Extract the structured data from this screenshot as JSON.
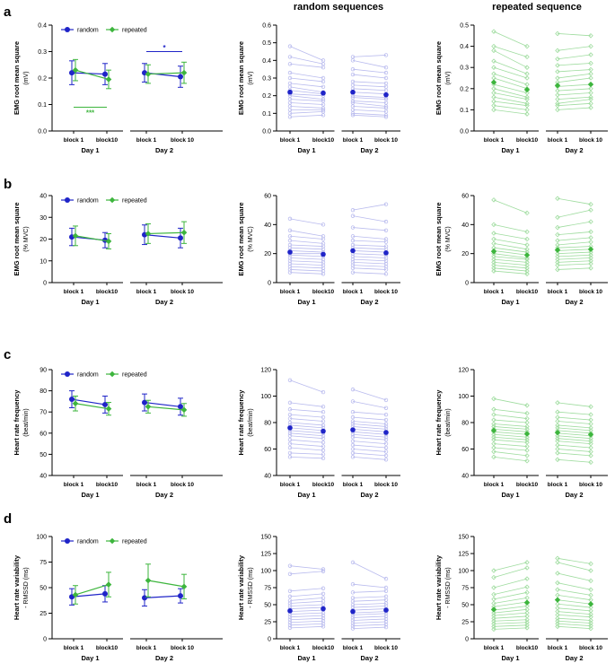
{
  "figure": {
    "col_titles": [
      "random sequences",
      "repeated sequence"
    ],
    "panel_letters": [
      "a",
      "b",
      "c",
      "d"
    ],
    "legend": {
      "random": "random",
      "repeated": "repeated"
    },
    "day_labels": [
      "Day 1",
      "Day 2"
    ],
    "colors": {
      "random": "#1f24c8",
      "repeated": "#3db53d",
      "random_light": "#b9bbee",
      "repeated_light": "#9fdc9f",
      "axis": "#000000"
    }
  },
  "chart_data": [
    {
      "type": "line",
      "row": "a",
      "ylabel": [
        "EMG root mean square",
        "(mV)"
      ],
      "categories": [
        "block 1",
        "block10",
        "block 1",
        "block 10"
      ],
      "ylim": [
        0,
        0.4
      ],
      "yticks": [
        0,
        0.1,
        0.2,
        0.3,
        0.4
      ],
      "decimals": 1,
      "series": [
        {
          "name": "random",
          "values": [
            0.22,
            0.215,
            0.22,
            0.205
          ],
          "sd": [
            0.045,
            0.04,
            0.035,
            0.04
          ]
        },
        {
          "name": "repeated",
          "values": [
            0.23,
            0.195,
            0.215,
            0.22
          ],
          "sd": [
            0.04,
            0.035,
            0.035,
            0.04
          ]
        }
      ],
      "annotations": [
        {
          "text": "***",
          "color": "#3db53d",
          "from": 0,
          "to": 1,
          "at": 0.09,
          "text_at": 0.07
        },
        {
          "text": "*",
          "color": "#1f24c8",
          "from": 2,
          "to": 3,
          "at": 0.3,
          "text_at": 0.315
        }
      ]
    },
    {
      "type": "line",
      "row": "b",
      "ylabel": [
        "EMG root mean square",
        "(% MVC)"
      ],
      "categories": [
        "block 1",
        "block10",
        "block 1",
        "block 10"
      ],
      "ylim": [
        0,
        40
      ],
      "yticks": [
        0,
        10,
        20,
        30,
        40
      ],
      "decimals": 0,
      "series": [
        {
          "name": "random",
          "values": [
            21,
            19.5,
            22,
            20.5
          ],
          "sd": [
            4,
            3.5,
            4.5,
            4.5
          ]
        },
        {
          "name": "repeated",
          "values": [
            21.5,
            19,
            22.5,
            23
          ],
          "sd": [
            4.5,
            3.5,
            4.5,
            5
          ]
        }
      ],
      "annotations": []
    },
    {
      "type": "line",
      "row": "c",
      "ylabel": [
        "Heart rate frequency",
        "(beat/min)"
      ],
      "categories": [
        "block 1",
        "block10",
        "block 1",
        "block 10"
      ],
      "ylim": [
        40,
        90
      ],
      "yticks": [
        40,
        50,
        60,
        70,
        80,
        90
      ],
      "decimals": 0,
      "series": [
        {
          "name": "random",
          "values": [
            76,
            73.5,
            74.5,
            72.5
          ],
          "sd": [
            4,
            4,
            4,
            4
          ]
        },
        {
          "name": "repeated",
          "values": [
            74,
            71.5,
            72.5,
            71
          ],
          "sd": [
            3.5,
            3,
            3,
            3
          ]
        }
      ],
      "annotations": []
    },
    {
      "type": "line",
      "row": "d",
      "ylabel": [
        "Heart rate variability",
        "- RMSSD (ms)"
      ],
      "categories": [
        "block 1",
        "block10",
        "block 1",
        "block 10"
      ],
      "ylim": [
        0,
        100
      ],
      "yticks": [
        0,
        25,
        50,
        75,
        100
      ],
      "decimals": 0,
      "series": [
        {
          "name": "random",
          "values": [
            41,
            44,
            40,
            42
          ],
          "sd": [
            8,
            8,
            8,
            7
          ]
        },
        {
          "name": "repeated",
          "values": [
            43,
            53,
            57,
            51
          ],
          "sd": [
            9,
            12,
            16,
            12
          ]
        }
      ],
      "annotations": []
    },
    {
      "type": "scatter",
      "row": "a",
      "series_name": "random",
      "ylabel": [
        "EMG root mean square",
        "(mV)"
      ],
      "categories": [
        "block 1",
        "block10",
        "block 1",
        "block 10"
      ],
      "ylim": [
        0,
        0.6
      ],
      "yticks": [
        0,
        0.1,
        0.2,
        0.3,
        0.4,
        0.5,
        0.6
      ],
      "decimals": 1,
      "means": [
        0.22,
        0.215,
        0.22,
        0.205
      ],
      "subjects": [
        [
          0.48,
          0.4,
          0.42,
          0.43
        ],
        [
          0.42,
          0.38,
          0.4,
          0.36
        ],
        [
          0.38,
          0.36,
          0.35,
          0.33
        ],
        [
          0.33,
          0.3,
          0.32,
          0.3
        ],
        [
          0.3,
          0.28,
          0.28,
          0.27
        ],
        [
          0.27,
          0.25,
          0.26,
          0.25
        ],
        [
          0.25,
          0.22,
          0.24,
          0.23
        ],
        [
          0.23,
          0.21,
          0.22,
          0.21
        ],
        [
          0.21,
          0.2,
          0.2,
          0.19
        ],
        [
          0.2,
          0.18,
          0.19,
          0.18
        ],
        [
          0.18,
          0.17,
          0.17,
          0.16
        ],
        [
          0.16,
          0.15,
          0.16,
          0.14
        ],
        [
          0.14,
          0.13,
          0.14,
          0.13
        ],
        [
          0.12,
          0.12,
          0.12,
          0.11
        ],
        [
          0.1,
          0.11,
          0.1,
          0.09
        ],
        [
          0.08,
          0.09,
          0.09,
          0.08
        ]
      ]
    },
    {
      "type": "scatter",
      "row": "a",
      "series_name": "repeated",
      "ylabel": [
        "EMG root mean square",
        "(mV)"
      ],
      "categories": [
        "block 1",
        "block10",
        "block 1",
        "block 10"
      ],
      "ylim": [
        0,
        0.5
      ],
      "yticks": [
        0,
        0.1,
        0.2,
        0.3,
        0.4,
        0.5
      ],
      "decimals": 1,
      "means": [
        0.23,
        0.195,
        0.215,
        0.22
      ],
      "subjects": [
        [
          0.47,
          0.4,
          0.46,
          0.45
        ],
        [
          0.4,
          0.35,
          0.38,
          0.4
        ],
        [
          0.38,
          0.3,
          0.34,
          0.36
        ],
        [
          0.33,
          0.27,
          0.31,
          0.32
        ],
        [
          0.3,
          0.25,
          0.28,
          0.29
        ],
        [
          0.27,
          0.22,
          0.25,
          0.27
        ],
        [
          0.25,
          0.2,
          0.23,
          0.25
        ],
        [
          0.22,
          0.18,
          0.21,
          0.22
        ],
        [
          0.2,
          0.16,
          0.19,
          0.2
        ],
        [
          0.18,
          0.15,
          0.17,
          0.18
        ],
        [
          0.16,
          0.13,
          0.15,
          0.16
        ],
        [
          0.14,
          0.12,
          0.13,
          0.15
        ],
        [
          0.12,
          0.1,
          0.12,
          0.13
        ],
        [
          0.1,
          0.08,
          0.1,
          0.11
        ]
      ]
    },
    {
      "type": "scatter",
      "row": "b",
      "series_name": "random",
      "ylabel": [
        "EMG root mean square",
        "(% MVC)"
      ],
      "categories": [
        "block 1",
        "block10",
        "block 1",
        "block 10"
      ],
      "ylim": [
        0,
        60
      ],
      "yticks": [
        0,
        20,
        40,
        60
      ],
      "decimals": 0,
      "means": [
        21,
        19.5,
        22,
        20.5
      ],
      "subjects": [
        [
          44,
          40,
          50,
          54
        ],
        [
          36,
          32,
          46,
          42
        ],
        [
          32,
          30,
          38,
          36
        ],
        [
          29,
          27,
          32,
          30
        ],
        [
          26,
          25,
          29,
          28
        ],
        [
          24,
          23,
          26,
          25
        ],
        [
          22,
          21,
          24,
          23
        ],
        [
          20,
          20,
          22,
          21
        ],
        [
          19,
          18,
          20,
          19
        ],
        [
          17,
          16,
          18,
          17
        ],
        [
          15,
          14,
          16,
          15
        ],
        [
          13,
          12,
          14,
          13
        ],
        [
          11,
          10,
          12,
          11
        ],
        [
          9,
          8,
          10,
          9
        ],
        [
          7,
          6,
          7,
          6
        ]
      ]
    },
    {
      "type": "scatter",
      "row": "b",
      "series_name": "repeated",
      "ylabel": [
        "EMG root mean square",
        "(% MVC)"
      ],
      "categories": [
        "block 1",
        "block10",
        "block 1",
        "block 10"
      ],
      "ylim": [
        0,
        60
      ],
      "yticks": [
        0,
        20,
        40,
        60
      ],
      "decimals": 0,
      "means": [
        21.5,
        19,
        22.5,
        23
      ],
      "subjects": [
        [
          57,
          48,
          58,
          54
        ],
        [
          40,
          35,
          45,
          50
        ],
        [
          34,
          30,
          38,
          42
        ],
        [
          30,
          26,
          33,
          35
        ],
        [
          27,
          23,
          29,
          31
        ],
        [
          24,
          21,
          26,
          28
        ],
        [
          22,
          19,
          24,
          25
        ],
        [
          20,
          17,
          22,
          23
        ],
        [
          18,
          16,
          20,
          21
        ],
        [
          16,
          14,
          18,
          19
        ],
        [
          14,
          12,
          16,
          17
        ],
        [
          12,
          10,
          14,
          15
        ],
        [
          10,
          8,
          12,
          13
        ],
        [
          8,
          6,
          9,
          10
        ]
      ]
    },
    {
      "type": "scatter",
      "row": "c",
      "series_name": "random",
      "ylabel": [
        "Heart rate frequency",
        "(beat/min)"
      ],
      "categories": [
        "block 1",
        "block10",
        "block 1",
        "block 10"
      ],
      "ylim": [
        40,
        120
      ],
      "yticks": [
        40,
        60,
        80,
        100,
        120
      ],
      "decimals": 0,
      "means": [
        76,
        73.5,
        74.5,
        72.5
      ],
      "subjects": [
        [
          112,
          103,
          105,
          97
        ],
        [
          95,
          92,
          96,
          91
        ],
        [
          90,
          88,
          88,
          86
        ],
        [
          86,
          84,
          84,
          82
        ],
        [
          83,
          81,
          81,
          79
        ],
        [
          80,
          78,
          79,
          77
        ],
        [
          78,
          76,
          77,
          75
        ],
        [
          76,
          74,
          75,
          73
        ],
        [
          74,
          72,
          73,
          71
        ],
        [
          72,
          70,
          71,
          69
        ],
        [
          70,
          68,
          69,
          67
        ],
        [
          67,
          65,
          66,
          64
        ],
        [
          64,
          62,
          63,
          61
        ],
        [
          61,
          59,
          60,
          58
        ],
        [
          57,
          56,
          57,
          55
        ],
        [
          54,
          53,
          54,
          52
        ]
      ]
    },
    {
      "type": "scatter",
      "row": "c",
      "series_name": "repeated",
      "ylabel": [
        "Heart rate frequency",
        "(beat/min)"
      ],
      "categories": [
        "block 1",
        "block10",
        "block 1",
        "block 10"
      ],
      "ylim": [
        40,
        120
      ],
      "yticks": [
        40,
        60,
        80,
        100,
        120
      ],
      "decimals": 0,
      "means": [
        74,
        71.5,
        72.5,
        71
      ],
      "subjects": [
        [
          98,
          93,
          95,
          92
        ],
        [
          90,
          87,
          88,
          86
        ],
        [
          86,
          83,
          84,
          82
        ],
        [
          82,
          80,
          81,
          79
        ],
        [
          79,
          77,
          78,
          76
        ],
        [
          77,
          75,
          76,
          74
        ],
        [
          75,
          73,
          74,
          72
        ],
        [
          73,
          71,
          72,
          70
        ],
        [
          71,
          69,
          70,
          68
        ],
        [
          69,
          67,
          68,
          66
        ],
        [
          67,
          65,
          66,
          64
        ],
        [
          64,
          62,
          63,
          61
        ],
        [
          61,
          59,
          60,
          58
        ],
        [
          58,
          55,
          57,
          55
        ],
        [
          54,
          51,
          52,
          50
        ]
      ]
    },
    {
      "type": "scatter",
      "row": "d",
      "series_name": "random",
      "ylabel": [
        "Heart rate variability",
        "- RMSSD (ms)"
      ],
      "categories": [
        "block 1",
        "block10",
        "block 1",
        "block 10"
      ],
      "ylim": [
        0,
        150
      ],
      "yticks": [
        0,
        25,
        50,
        75,
        100,
        125,
        150
      ],
      "decimals": 0,
      "means": [
        41,
        44,
        40,
        42
      ],
      "subjects": [
        [
          107,
          102,
          112,
          88
        ],
        [
          95,
          99,
          80,
          75
        ],
        [
          70,
          74,
          68,
          70
        ],
        [
          62,
          66,
          60,
          62
        ],
        [
          56,
          60,
          55,
          57
        ],
        [
          52,
          55,
          50,
          52
        ],
        [
          48,
          50,
          46,
          48
        ],
        [
          44,
          46,
          42,
          44
        ],
        [
          40,
          42,
          38,
          40
        ],
        [
          36,
          38,
          35,
          37
        ],
        [
          32,
          34,
          31,
          33
        ],
        [
          28,
          30,
          27,
          29
        ],
        [
          24,
          26,
          23,
          25
        ],
        [
          20,
          22,
          19,
          21
        ],
        [
          16,
          18,
          15,
          17
        ]
      ]
    },
    {
      "type": "scatter",
      "row": "d",
      "series_name": "repeated",
      "ylabel": [
        "Heart rate variability",
        "- RMSSD (ms)"
      ],
      "categories": [
        "block 1",
        "block10",
        "block 1",
        "block 10"
      ],
      "ylim": [
        0,
        150
      ],
      "yticks": [
        0,
        25,
        50,
        75,
        100,
        125,
        150
      ],
      "decimals": 0,
      "means": [
        43,
        53,
        57,
        51
      ],
      "subjects": [
        [
          100,
          112,
          118,
          110
        ],
        [
          90,
          104,
          112,
          100
        ],
        [
          75,
          88,
          96,
          85
        ],
        [
          65,
          76,
          82,
          72
        ],
        [
          58,
          68,
          72,
          64
        ],
        [
          52,
          60,
          64,
          57
        ],
        [
          47,
          54,
          57,
          51
        ],
        [
          42,
          48,
          51,
          46
        ],
        [
          38,
          43,
          45,
          41
        ],
        [
          34,
          38,
          40,
          36
        ],
        [
          30,
          33,
          35,
          32
        ],
        [
          26,
          28,
          30,
          27
        ],
        [
          22,
          24,
          26,
          23
        ],
        [
          18,
          20,
          22,
          19
        ],
        [
          14,
          16,
          18,
          15
        ]
      ]
    }
  ]
}
